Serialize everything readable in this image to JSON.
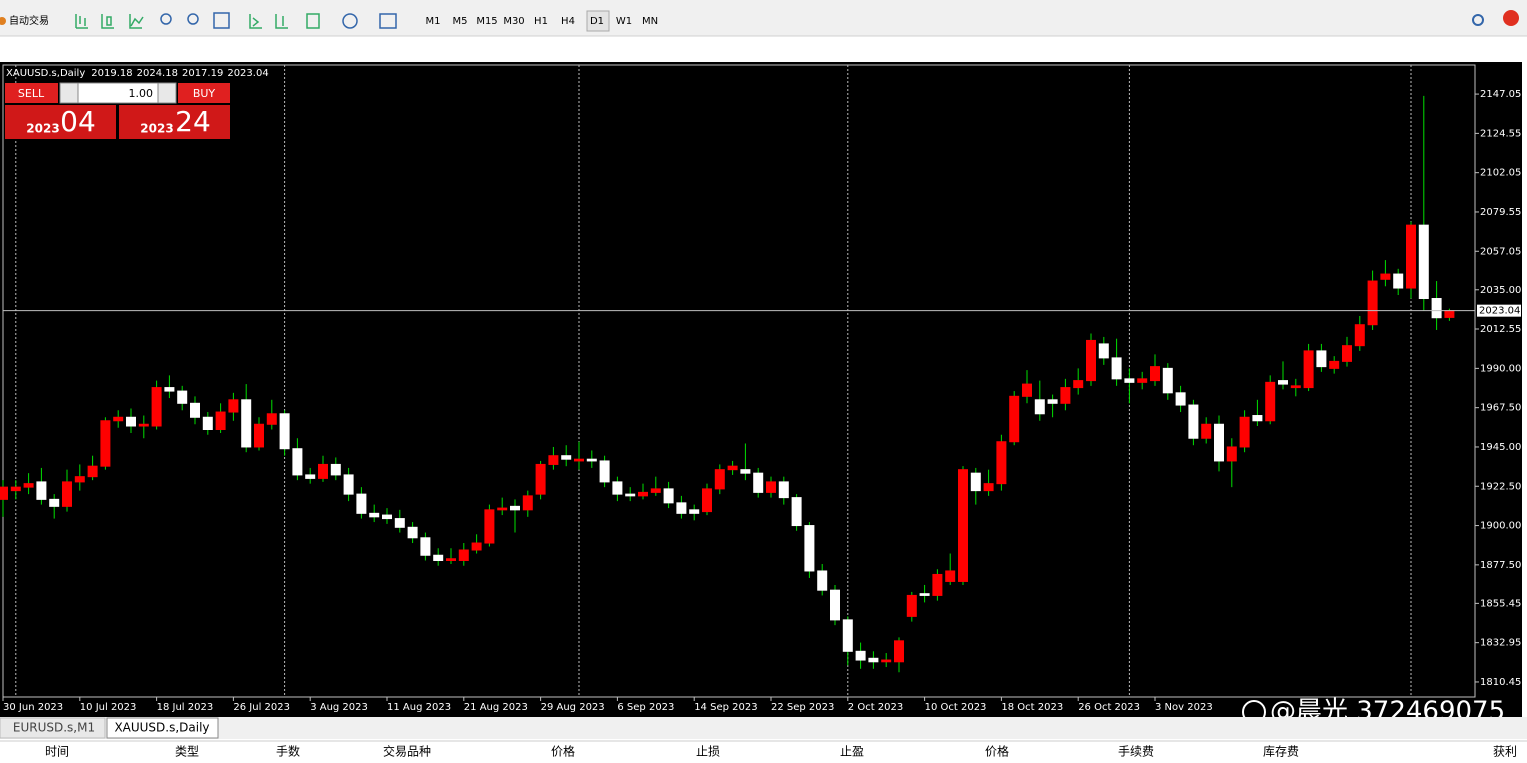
{
  "toolbar": {
    "auto_trade": "自动交易",
    "timeframes": [
      "M1",
      "M5",
      "M15",
      "M30",
      "H1",
      "H4",
      "D1",
      "W1",
      "MN"
    ],
    "active_timeframe": "D1"
  },
  "trade_panel": {
    "sell": "SELL",
    "buy": "BUY",
    "volume": "1.00",
    "sell_price_big": "2023",
    "sell_price_small": "04",
    "buy_price_big": "2023",
    "buy_price_small": "24"
  },
  "chart_data": {
    "type": "candlestick",
    "symbol": "XAUUSD.s,Daily",
    "bull_color": "#ff0000",
    "bear_color": "#ffffff",
    "wick_color": "#00e000",
    "categories": [
      "30 Jun 2023",
      null,
      null,
      null,
      null,
      null,
      "10 Jul 2023",
      null,
      null,
      null,
      null,
      null,
      "18 Jul 2023",
      null,
      null,
      null,
      null,
      null,
      "26 Jul 2023",
      null,
      null,
      null,
      null,
      null,
      "3 Aug 2023",
      null,
      null,
      null,
      null,
      null,
      "11 Aug 2023",
      null,
      null,
      null,
      null,
      null,
      "21 Aug 2023",
      null,
      null,
      null,
      null,
      null,
      "29 Aug 2023",
      null,
      null,
      null,
      null,
      null,
      "6 Sep 2023",
      null,
      null,
      null,
      null,
      null,
      "14 Sep 2023",
      null,
      null,
      null,
      null,
      null,
      "22 Sep 2023",
      null,
      null,
      null,
      null,
      null,
      "2 Oct 2023",
      null,
      null,
      null,
      null,
      null,
      "10 Oct 2023",
      null,
      null,
      null,
      null,
      null,
      "18 Oct 2023",
      null,
      null,
      null,
      null,
      null,
      "26 Oct 2023",
      null,
      null,
      null,
      null,
      null,
      "3 Nov 2023",
      null,
      null,
      null,
      null,
      null,
      null,
      null,
      null,
      null,
      null,
      null,
      null,
      null,
      null,
      null,
      null,
      null,
      null,
      null,
      null,
      null,
      null,
      null
    ],
    "open": [
      1915,
      1920,
      1922,
      1925,
      1915,
      1911,
      1925,
      1928,
      1934,
      1960,
      1962,
      1957,
      1957,
      1979,
      1977,
      1970,
      1962,
      1955,
      1965,
      1972,
      1945,
      1958,
      1964,
      1944,
      1929,
      1927,
      1935,
      1929,
      1918,
      1907,
      1906,
      1904,
      1899,
      1893,
      1883,
      1880,
      1880,
      1886,
      1890,
      1909,
      1911,
      1909,
      1918,
      1935,
      1940,
      1937,
      1938,
      1937,
      1925,
      1918,
      1917,
      1919,
      1921,
      1913,
      1909,
      1908,
      1921,
      1932,
      1932,
      1930,
      1919,
      1925,
      1916,
      1900,
      1874,
      1863,
      1846,
      1828,
      1824,
      1822,
      1822,
      1848,
      1861,
      1860,
      1868,
      1868,
      1930,
      1920,
      1924,
      1948,
      1974,
      1972,
      1972,
      1970,
      1979,
      1983,
      2004,
      1996,
      1984,
      1982,
      1983,
      1990,
      1976,
      1969,
      1950,
      1958,
      1937,
      1945,
      1963,
      1960,
      1983,
      1979,
      1979,
      2000,
      1990,
      1994,
      2003,
      2015,
      2041,
      2044,
      2036,
      2072,
      2030,
      2019.18
    ],
    "high": [
      1926,
      1926,
      1930,
      1933,
      1918,
      1932,
      1935,
      1940,
      1962,
      1966,
      1967,
      1963,
      1983,
      1986,
      1980,
      1974,
      1965,
      1970,
      1976,
      1981,
      1962,
      1972,
      1966,
      1950,
      1933,
      1940,
      1939,
      1933,
      1922,
      1912,
      1910,
      1909,
      1902,
      1896,
      1887,
      1887,
      1890,
      1895,
      1912,
      1916,
      1915,
      1920,
      1937,
      1945,
      1946,
      1948,
      1943,
      1940,
      1928,
      1922,
      1924,
      1928,
      1925,
      1917,
      1912,
      1924,
      1935,
      1937,
      1947,
      1933,
      1928,
      1928,
      1918,
      1902,
      1878,
      1866,
      1848,
      1833,
      1828,
      1827,
      1836,
      1862,
      1866,
      1875,
      1884,
      1934,
      1933,
      1932,
      1952,
      1977,
      1989,
      1983,
      1975,
      1984,
      1990,
      2010,
      2008,
      2007,
      1990,
      1988,
      1998,
      1993,
      1980,
      1972,
      1962,
      1963,
      1950,
      1966,
      1972,
      1986,
      1994,
      1984,
      2004,
      2004,
      1997,
      2008,
      2020,
      2046,
      2052,
      2047,
      2074,
      2146,
      2040,
      2024.18
    ],
    "low": [
      1905,
      1915,
      1918,
      1912,
      1904,
      1908,
      1920,
      1926,
      1932,
      1956,
      1953,
      1950,
      1955,
      1973,
      1966,
      1958,
      1952,
      1953,
      1960,
      1942,
      1943,
      1955,
      1940,
      1926,
      1924,
      1925,
      1926,
      1914,
      1904,
      1902,
      1901,
      1896,
      1890,
      1880,
      1877,
      1878,
      1877,
      1884,
      1888,
      1906,
      1896,
      1905,
      1915,
      1932,
      1934,
      1932,
      1933,
      1922,
      1914,
      1914,
      1915,
      1917,
      1910,
      1904,
      1903,
      1906,
      1918,
      1929,
      1926,
      1916,
      1916,
      1912,
      1897,
      1870,
      1860,
      1843,
      1820,
      1818,
      1818,
      1819,
      1816,
      1845,
      1856,
      1857,
      1866,
      1866,
      1912,
      1917,
      1920,
      1946,
      1970,
      1960,
      1962,
      1966,
      1975,
      1980,
      1992,
      1980,
      1970,
      1978,
      1980,
      1972,
      1965,
      1946,
      1947,
      1931,
      1922,
      1942,
      1957,
      1958,
      1978,
      1974,
      1977,
      1988,
      1987,
      1991,
      2000,
      2012,
      2037,
      2032,
      2030,
      2023,
      2012,
      2017.19
    ],
    "close": [
      1922,
      1922,
      1924,
      1915,
      1911,
      1925,
      1928,
      1934,
      1960,
      1962,
      1957,
      1958,
      1979,
      1977,
      1970,
      1962,
      1955,
      1965,
      1972,
      1945,
      1958,
      1964,
      1944,
      1929,
      1927,
      1935,
      1929,
      1918,
      1907,
      1905,
      1904,
      1899,
      1893,
      1883,
      1880,
      1881,
      1886,
      1890,
      1909,
      1910,
      1909,
      1917,
      1935,
      1940,
      1938,
      1938,
      1937,
      1925,
      1918,
      1917,
      1919,
      1921,
      1913,
      1907,
      1907,
      1921,
      1932,
      1934,
      1930,
      1919,
      1925,
      1916,
      1900,
      1874,
      1863,
      1846,
      1828,
      1823,
      1822,
      1823,
      1834,
      1860,
      1860,
      1872,
      1874,
      1932,
      1920,
      1924,
      1948,
      1974,
      1981,
      1964,
      1970,
      1979,
      1983,
      2006,
      1996,
      1984,
      1982,
      1984,
      1991,
      1976,
      1969,
      1950,
      1958,
      1937,
      1945,
      1962,
      1960,
      1982,
      1981,
      1980,
      2000,
      1991,
      1994,
      2003,
      2015,
      2040,
      2044,
      2036,
      2072,
      2030,
      2019,
      2023.04
    ],
    "bid": 2023.04,
    "ylim": [
      1801.84,
      2163.7
    ],
    "yticks": [
      2147.05,
      2124.55,
      2102.05,
      2079.55,
      2057.05,
      {
        "value": 2035,
        "label": "2035.00"
      },
      2012.55,
      {
        "value": 1990,
        "label": "1990.00"
      },
      {
        "value": 1967.5,
        "label": "1967.50"
      },
      {
        "value": 1945,
        "label": "1945.00"
      },
      {
        "value": 1922.5,
        "label": "1922.50"
      },
      {
        "value": 1900,
        "label": "1900.00"
      },
      {
        "value": 1877.5,
        "label": "1877.50"
      },
      1855.45,
      1832.95,
      1810.45
    ]
  },
  "tabs": [
    "EURUSD.s,M1",
    "XAUUSD.s,Daily"
  ],
  "table_headers": [
    "时间",
    "类型",
    "手数",
    "交易品种",
    "价格",
    "止损",
    "止盈",
    "价格",
    "手续费",
    "库存费",
    "获利"
  ],
  "watermark": "@晨光 372469075"
}
